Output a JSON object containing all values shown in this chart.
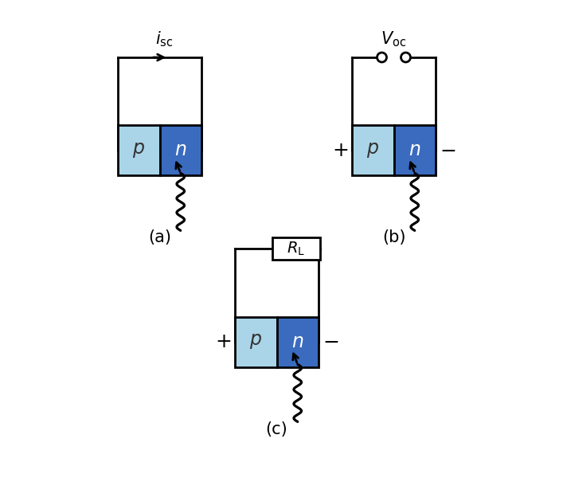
{
  "bg_color": "#ffffff",
  "p_color": "#aad4e8",
  "n_color": "#3a6bbf",
  "line_color": "#000000",
  "text_color": "#000000",
  "label_a": "(a)",
  "label_b": "(b)",
  "label_c": "(c)"
}
